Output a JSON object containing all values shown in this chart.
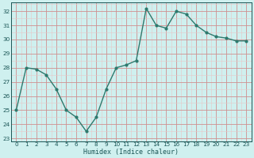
{
  "x": [
    0,
    1,
    2,
    3,
    4,
    5,
    6,
    7,
    8,
    9,
    10,
    11,
    12,
    13,
    14,
    15,
    16,
    17,
    18,
    19,
    20,
    21,
    22,
    23
  ],
  "y": [
    25.0,
    28.0,
    27.9,
    27.5,
    26.5,
    25.0,
    24.5,
    23.5,
    24.5,
    26.5,
    28.0,
    28.2,
    28.5,
    32.2,
    31.0,
    30.8,
    32.0,
    31.8,
    31.0,
    30.5,
    30.2,
    30.1,
    29.9,
    29.9
  ],
  "line_color": "#2d7a6e",
  "marker": "o",
  "marker_size": 2,
  "bg_color": "#cff0ef",
  "grid_major_color": "#d09090",
  "grid_minor_color": "#e8c8c8",
  "xlabel": "Humidex (Indice chaleur)",
  "ylabel": "",
  "ylim": [
    22.8,
    32.6
  ],
  "yticks": [
    23,
    24,
    25,
    26,
    27,
    28,
    29,
    30,
    31,
    32
  ],
  "xlim": [
    -0.5,
    23.5
  ],
  "xticks": [
    0,
    1,
    2,
    3,
    4,
    5,
    6,
    7,
    8,
    9,
    10,
    11,
    12,
    13,
    14,
    15,
    16,
    17,
    18,
    19,
    20,
    21,
    22,
    23
  ],
  "xlabel_fontsize": 6.0,
  "tick_fontsize": 5.2,
  "line_width": 1.0
}
